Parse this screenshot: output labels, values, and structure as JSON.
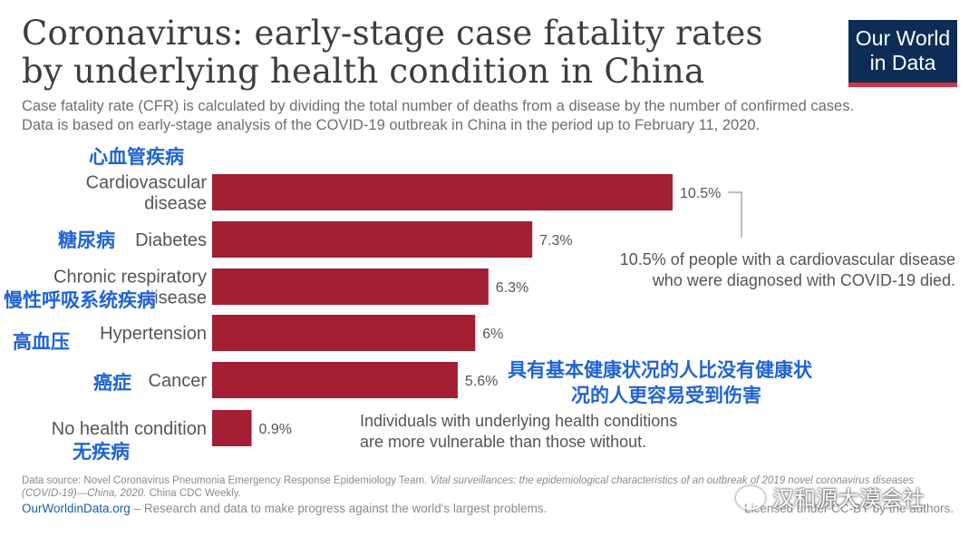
{
  "header": {
    "title_line1": "Coronavirus: early-stage case fatality rates",
    "title_line2": "by underlying health condition in China",
    "subtitle_line1": "Case fatality rate (CFR) is calculated by dividing the total number of deaths from a disease by the number of confirmed cases.",
    "subtitle_line2": "Data is based on early-stage analysis of the COVID-19 outbreak in China in the period up to February 11, 2020."
  },
  "logo": {
    "line1": "Our World",
    "line2": "in Data"
  },
  "chart_data": {
    "type": "bar",
    "orientation": "horizontal",
    "categories": [
      [
        "Cardiovascular",
        "disease"
      ],
      [
        "Diabetes"
      ],
      [
        "Chronic respiratory",
        "disease"
      ],
      [
        "Hypertension"
      ],
      [
        "Cancer"
      ],
      [
        "No health condition"
      ]
    ],
    "values": [
      10.5,
      7.3,
      6.3,
      6,
      5.6,
      0.9
    ],
    "value_labels": [
      "10.5%",
      "7.3%",
      "6.3%",
      "6%",
      "5.6%",
      "0.9%"
    ],
    "bar_color": "#a31e32",
    "xlim": [
      0,
      10.5
    ],
    "grid": false
  },
  "annotations": {
    "cardio_note_line1": "10.5% of people with a cardiovascular disease",
    "cardio_note_line2": "who were diagnosed with COVID-19 died.",
    "vulnerable_line1": "Individuals with underlying health conditions",
    "vulnerable_line2": "are more vulnerable than those without."
  },
  "chinese_labels": {
    "cardiovascular": "心血管疾病",
    "diabetes": "糖尿病",
    "respiratory": "慢性呼吸系统疾病",
    "hypertension": "高血压",
    "cancer": "癌症",
    "no_condition": "无疾病",
    "note_line1": "具有基本健康状况的人比没有健康状",
    "note_line2": "况的人更容易受到伤害",
    "color": "#1f63d6"
  },
  "footer": {
    "source_prefix": "Data source: Novel Coronavirus Pneumonia Emergency Response Epidemiology Team.",
    "source_italic": "Vital surveillances: the epidemiological characteristics of an outbreak of 2019 novel coronavirus diseases (COVID-19)—China, 2020.",
    "source_suffix": "China CDC Weekly.",
    "owid_link": "OurWorldinData.org",
    "tagline": " – Research and data to make progress against the world's largest problems.",
    "license": "Licensed under CC-BY by the authors."
  },
  "watermark": {
    "text": "汉和源大漠会社",
    "icon": "wechat-icon"
  }
}
